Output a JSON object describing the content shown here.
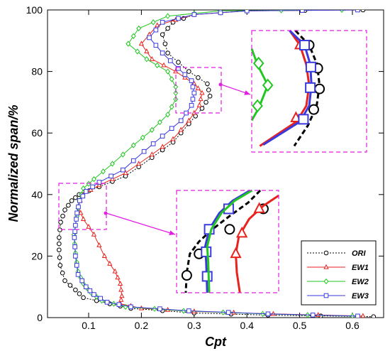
{
  "chart_data": {
    "type": "line",
    "xlabel": "Cpt",
    "ylabel": "Normalized span/%",
    "xlim": [
      0.03,
      0.66
    ],
    "ylim": [
      0,
      100
    ],
    "x_ticks": [
      "0.1",
      "0.2",
      "0.3",
      "0.4",
      "0.5",
      "0.6"
    ],
    "y_ticks": [
      "0",
      "20",
      "40",
      "60",
      "80",
      "100"
    ],
    "legend_position": "bottom-right",
    "series": [
      {
        "name": "ORI",
        "color": "#000000",
        "dashed": true,
        "marker": "circle",
        "points": [
          [
            0.64,
            0.3
          ],
          [
            0.44,
            0.8
          ],
          [
            0.3,
            1.5
          ],
          [
            0.18,
            3
          ],
          [
            0.14,
            4.5
          ],
          [
            0.09,
            6.5
          ],
          [
            0.075,
            9
          ],
          [
            0.055,
            12
          ],
          [
            0.046,
            17
          ],
          [
            0.044,
            22
          ],
          [
            0.044,
            26
          ],
          [
            0.047,
            31
          ],
          [
            0.055,
            35
          ],
          [
            0.068,
            38
          ],
          [
            0.082,
            40
          ],
          [
            0.12,
            42.5
          ],
          [
            0.17,
            46
          ],
          [
            0.22,
            52
          ],
          [
            0.26,
            57
          ],
          [
            0.29,
            63
          ],
          [
            0.315,
            68
          ],
          [
            0.33,
            72
          ],
          [
            0.325,
            76
          ],
          [
            0.29,
            80
          ],
          [
            0.25,
            86
          ],
          [
            0.24,
            92
          ],
          [
            0.26,
            96
          ],
          [
            0.3,
            98.5
          ],
          [
            0.4,
            99.7
          ],
          [
            0.62,
            100
          ]
        ]
      },
      {
        "name": "EW1",
        "color": "#e8221c",
        "dashed": false,
        "marker": "triangle",
        "points": [
          [
            0.62,
            0.5
          ],
          [
            0.45,
            1.2
          ],
          [
            0.3,
            2
          ],
          [
            0.2,
            3
          ],
          [
            0.16,
            4.5
          ],
          [
            0.163,
            7
          ],
          [
            0.16,
            11
          ],
          [
            0.15,
            15
          ],
          [
            0.13,
            20
          ],
          [
            0.11,
            27
          ],
          [
            0.09,
            32
          ],
          [
            0.08,
            36
          ],
          [
            0.088,
            40
          ],
          [
            0.12,
            43
          ],
          [
            0.17,
            47
          ],
          [
            0.22,
            53
          ],
          [
            0.26,
            58
          ],
          [
            0.29,
            64
          ],
          [
            0.31,
            69
          ],
          [
            0.315,
            73
          ],
          [
            0.3,
            76
          ],
          [
            0.265,
            80
          ],
          [
            0.22,
            84
          ],
          [
            0.2,
            89
          ],
          [
            0.23,
            95
          ],
          [
            0.3,
            98.5
          ],
          [
            0.4,
            99.7
          ],
          [
            0.61,
            100
          ]
        ]
      },
      {
        "name": "EW2",
        "color": "#22c622",
        "dashed": false,
        "marker": "diamond",
        "points": [
          [
            0.6,
            0.5
          ],
          [
            0.43,
            1.2
          ],
          [
            0.28,
            2.2
          ],
          [
            0.17,
            3.5
          ],
          [
            0.125,
            5.5
          ],
          [
            0.105,
            8
          ],
          [
            0.09,
            11
          ],
          [
            0.08,
            15
          ],
          [
            0.075,
            21
          ],
          [
            0.072,
            27
          ],
          [
            0.078,
            33
          ],
          [
            0.082,
            38
          ],
          [
            0.09,
            42
          ],
          [
            0.11,
            45
          ],
          [
            0.145,
            50
          ],
          [
            0.185,
            56
          ],
          [
            0.22,
            61
          ],
          [
            0.25,
            66
          ],
          [
            0.265,
            71
          ],
          [
            0.265,
            75
          ],
          [
            0.25,
            80
          ],
          [
            0.21,
            84
          ],
          [
            0.175,
            89
          ],
          [
            0.195,
            94
          ],
          [
            0.25,
            98
          ],
          [
            0.35,
            99.7
          ],
          [
            0.58,
            100
          ]
        ]
      },
      {
        "name": "EW3",
        "color": "#3a3ade",
        "dashed": false,
        "marker": "square",
        "points": [
          [
            0.61,
            0.5
          ],
          [
            0.44,
            1.2
          ],
          [
            0.29,
            2.2
          ],
          [
            0.18,
            3.5
          ],
          [
            0.135,
            5
          ],
          [
            0.11,
            7.5
          ],
          [
            0.095,
            10
          ],
          [
            0.08,
            14
          ],
          [
            0.075,
            20
          ],
          [
            0.073,
            26
          ],
          [
            0.075,
            30
          ],
          [
            0.078,
            34
          ],
          [
            0.083,
            38
          ],
          [
            0.095,
            41
          ],
          [
            0.12,
            44
          ],
          [
            0.165,
            48
          ],
          [
            0.205,
            54
          ],
          [
            0.24,
            59
          ],
          [
            0.275,
            64
          ],
          [
            0.295,
            69
          ],
          [
            0.3,
            73
          ],
          [
            0.295,
            77
          ],
          [
            0.27,
            81
          ],
          [
            0.24,
            86
          ],
          [
            0.215,
            91
          ],
          [
            0.24,
            96
          ],
          [
            0.3,
            98.5
          ],
          [
            0.4,
            99.7
          ],
          [
            0.61,
            100
          ]
        ]
      }
    ],
    "insets": [
      {
        "region": {
          "x": [
            0.265,
            0.31
          ],
          "y": [
            66,
            81
          ]
        },
        "curves": [
          {
            "series": "ORI",
            "color": "#000000",
            "dashed": true,
            "marker": "circle",
            "points": [
              [
                0.38,
                1.0
              ],
              [
                0.5,
                0.88
              ],
              [
                0.57,
                0.72
              ],
              [
                0.59,
                0.55
              ],
              [
                0.565,
                0.38
              ],
              [
                0.49,
                0.22
              ],
              [
                0.37,
                0.05
              ]
            ],
            "markers": [
              [
                0.5,
                0.88
              ],
              [
                0.575,
                0.69
              ],
              [
                0.59,
                0.52
              ],
              [
                0.54,
                0.35
              ]
            ]
          },
          {
            "series": "EW1",
            "color": "#e8221c",
            "dashed": false,
            "marker": "triangle",
            "points": [
              [
                0.33,
                1.0
              ],
              [
                0.42,
                0.88
              ],
              [
                0.475,
                0.72
              ],
              [
                0.5,
                0.55
              ],
              [
                0.475,
                0.38
              ],
              [
                0.39,
                0.25
              ],
              [
                0.07,
                0.05
              ]
            ],
            "markers": [
              [
                0.42,
                0.88
              ],
              [
                0.385,
                0.28
              ]
            ]
          },
          {
            "series": "EW3",
            "color": "#3a3ade",
            "dashed": false,
            "marker": "square",
            "points": [
              [
                0.33,
                1.0
              ],
              [
                0.46,
                0.88
              ],
              [
                0.51,
                0.72
              ],
              [
                0.52,
                0.55
              ],
              [
                0.5,
                0.38
              ],
              [
                0.42,
                0.25
              ],
              [
                0.1,
                0.06
              ]
            ],
            "markers": [
              [
                0.46,
                0.88
              ],
              [
                0.515,
                0.7
              ],
              [
                0.51,
                0.53
              ],
              [
                0.45,
                0.27
              ]
            ]
          },
          {
            "series": "EW2",
            "color": "#22c622",
            "dashed": false,
            "marker": "diamond",
            "points": [
              [
                0.0,
                0.85
              ],
              [
                0.05,
                0.72
              ],
              [
                0.14,
                0.55
              ],
              [
                0.06,
                0.36
              ],
              [
                0.0,
                0.26
              ]
            ],
            "markers": [
              [
                0.06,
                0.73
              ],
              [
                0.14,
                0.55
              ],
              [
                0.05,
                0.38
              ]
            ]
          }
        ]
      },
      {
        "region": {
          "x": [
            0.055,
            0.13
          ],
          "y": [
            28,
            44
          ]
        },
        "curves": [
          {
            "series": "ORI",
            "color": "#000000",
            "dashed": true,
            "marker": "circle",
            "points": [
              [
                0.82,
                1.0
              ],
              [
                0.7,
                0.88
              ],
              [
                0.52,
                0.75
              ],
              [
                0.35,
                0.62
              ],
              [
                0.22,
                0.5
              ],
              [
                0.13,
                0.38
              ],
              [
                0.1,
                0.2
              ],
              [
                0.09,
                0.0
              ]
            ],
            "markers": [
              [
                0.85,
                0.82
              ],
              [
                0.52,
                0.62
              ],
              [
                0.22,
                0.38
              ],
              [
                0.1,
                0.17
              ]
            ]
          },
          {
            "series": "EW3",
            "color": "#3a3ade",
            "dashed": false,
            "marker": "square",
            "points": [
              [
                0.72,
                1.0
              ],
              [
                0.55,
                0.9
              ],
              [
                0.42,
                0.78
              ],
              [
                0.32,
                0.62
              ],
              [
                0.28,
                0.45
              ],
              [
                0.29,
                0.3
              ],
              [
                0.3,
                0.0
              ]
            ],
            "markers": [
              [
                0.51,
                0.82
              ],
              [
                0.32,
                0.62
              ],
              [
                0.29,
                0.4
              ],
              [
                0.3,
                0.16
              ]
            ]
          },
          {
            "series": "EW2",
            "color": "#22c622",
            "dashed": false,
            "marker": "diamond",
            "points": [
              [
                0.74,
                1.0
              ],
              [
                0.57,
                0.9
              ],
              [
                0.44,
                0.78
              ],
              [
                0.34,
                0.62
              ],
              [
                0.3,
                0.45
              ],
              [
                0.31,
                0.3
              ],
              [
                0.32,
                0.0
              ]
            ],
            "markers": []
          },
          {
            "series": "EW1",
            "color": "#e8221c",
            "dashed": false,
            "marker": "triangle",
            "points": [
              [
                1.0,
                0.95
              ],
              [
                0.85,
                0.85
              ],
              [
                0.71,
                0.72
              ],
              [
                0.61,
                0.55
              ],
              [
                0.58,
                0.38
              ],
              [
                0.59,
                0.2
              ],
              [
                0.62,
                0.0
              ]
            ],
            "markers": [
              [
                0.81,
                0.82
              ],
              [
                0.64,
                0.58
              ],
              [
                0.58,
                0.38
              ]
            ]
          }
        ]
      }
    ]
  }
}
